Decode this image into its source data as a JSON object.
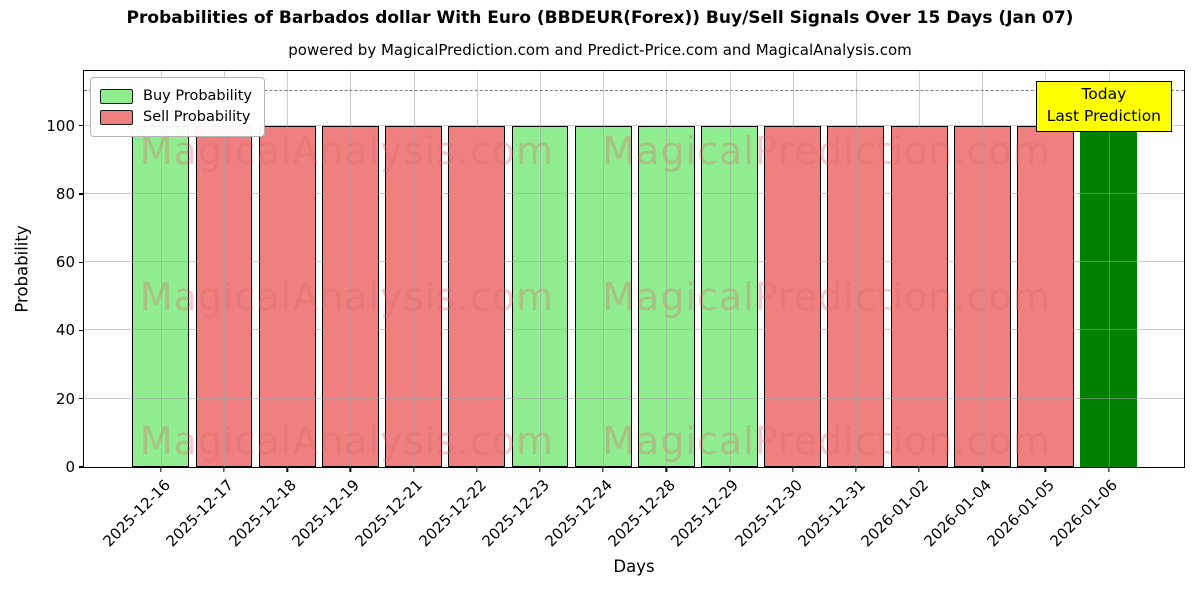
{
  "title": "Probabilities of Barbados dollar With Euro (BBDEUR(Forex)) Buy/Sell Signals Over 15 Days (Jan 07)",
  "subtitle": "powered by MagicalPrediction.com and Predict-Price.com and MagicalAnalysis.com",
  "legend": {
    "items": [
      {
        "label": "Buy Probability",
        "color_key": "buy"
      },
      {
        "label": "Sell Probability",
        "color_key": "sell"
      }
    ]
  },
  "annotation": {
    "line1": "Today",
    "line2": "Last Prediction"
  },
  "axes": {
    "xlabel": "Days",
    "ylabel": "Probability"
  },
  "watermark_texts": [
    "MagicalAnalysis.com",
    "MagicalPrediction.com"
  ],
  "colors": {
    "buy": "#90ee90",
    "sell": "#f08080",
    "today": "#008000",
    "annotation_bg": "#ffff00",
    "watermark": "rgba(219,108,108,0.35)"
  },
  "chart_data": {
    "type": "bar",
    "title": "Probabilities of Barbados dollar With Euro (BBDEUR(Forex)) Buy/Sell Signals Over 15 Days (Jan 07)",
    "xlabel": "Days",
    "ylabel": "Probability",
    "categories": [
      "2025-12-16",
      "2025-12-17",
      "2025-12-18",
      "2025-12-19",
      "2025-12-21",
      "2025-12-22",
      "2025-12-23",
      "2025-12-24",
      "2025-12-28",
      "2025-12-29",
      "2025-12-30",
      "2025-12-31",
      "2026-01-02",
      "2026-01-04",
      "2026-01-05",
      "2026-01-06"
    ],
    "values": [
      100,
      100,
      100,
      100,
      100,
      100,
      100,
      100,
      100,
      100,
      100,
      100,
      100,
      100,
      100,
      100
    ],
    "signals": [
      "buy",
      "sell",
      "sell",
      "sell",
      "sell",
      "sell",
      "buy",
      "buy",
      "buy",
      "buy",
      "sell",
      "sell",
      "sell",
      "sell",
      "sell",
      "today"
    ],
    "yticks": [
      0,
      20,
      40,
      60,
      80,
      100
    ],
    "ylim": [
      0,
      116
    ],
    "dashed_line_y": 110,
    "grid": "on",
    "legend_position": "upper left"
  }
}
